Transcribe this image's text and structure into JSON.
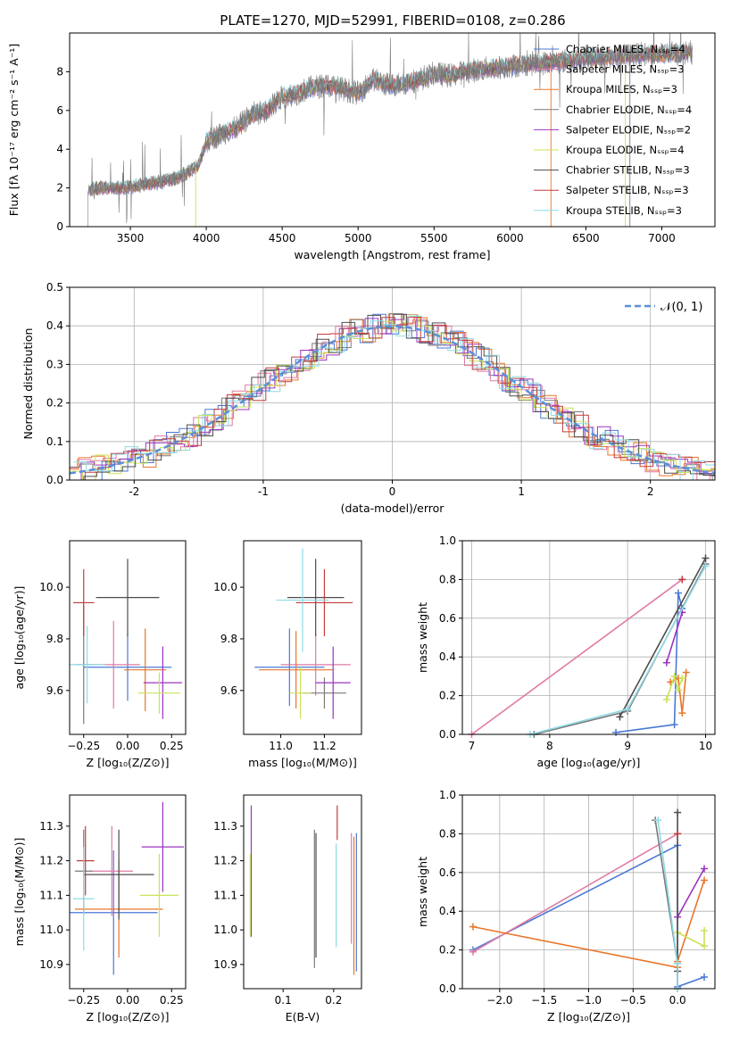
{
  "page": {
    "title": "PLATE=1270, MJD=52991, FIBERID=0108, z=0.286"
  },
  "colors": {
    "black": "#000000",
    "grid": "#b0b0b0",
    "gaussian": "#5b8fd9"
  },
  "models": [
    {
      "id": "chabrier_miles",
      "label": "Chabrier MILES, Nₛₛₚ=4",
      "color": "#4a78d4"
    },
    {
      "id": "salpeter_miles",
      "label": "Salpeter MILES, Nₛₛₚ=3",
      "color": "#e07aa6"
    },
    {
      "id": "kroupa_miles",
      "label": "Kroupa MILES, Nₛₛₚ=3",
      "color": "#e8762a"
    },
    {
      "id": "chabrier_elodie",
      "label": "Chabrier ELODIE, Nₛₛₚ=4",
      "color": "#7a7a7a"
    },
    {
      "id": "salpeter_elodie",
      "label": "Salpeter ELODIE, Nₛₛₚ=2",
      "color": "#9b34c0"
    },
    {
      "id": "kroupa_elodie",
      "label": "Kroupa ELODIE, Nₛₛₚ=4",
      "color": "#c9e35a"
    },
    {
      "id": "chabrier_stelib",
      "label": "Chabrier STELIB, Nₛₛₚ=3",
      "color": "#4d4d4d"
    },
    {
      "id": "salpeter_stelib",
      "label": "Salpeter STELIB, Nₛₛₚ=3",
      "color": "#c43b3b"
    },
    {
      "id": "kroupa_stelib",
      "label": "Kroupa STELIB, Nₛₛₚ=3",
      "color": "#8edbe5"
    }
  ],
  "chart_data": [
    {
      "id": "spectrum",
      "type": "line",
      "xlabel": "wavelength [Angstrom, rest frame]",
      "ylabel": "Flux [fλ 10⁻¹⁷ erg cm⁻² s⁻¹ A⁻¹]",
      "xlim": [
        3100,
        7350
      ],
      "ylim": [
        0,
        10
      ],
      "xticks": [
        3500,
        4000,
        4500,
        5000,
        5500,
        6000,
        6500,
        7000
      ],
      "yticks": [
        0,
        2,
        4,
        6,
        8
      ],
      "grid": false,
      "legend": "upper right",
      "continuum": {
        "x": [
          3220,
          3300,
          3400,
          3500,
          3600,
          3700,
          3800,
          3900,
          3950,
          4000,
          4100,
          4200,
          4300,
          4400,
          4500,
          4600,
          4700,
          4800,
          4900,
          5000,
          5100,
          5200,
          5300,
          5400,
          5500,
          5600,
          5700,
          5800,
          5900,
          6000,
          6100,
          6200,
          6300,
          6400,
          6500,
          6600,
          6700,
          6800,
          6900,
          7000,
          7100,
          7200
        ],
        "y": [
          1.9,
          2.0,
          2.0,
          2.05,
          2.2,
          2.3,
          2.5,
          2.9,
          3.2,
          4.4,
          4.8,
          5.1,
          5.8,
          6.0,
          6.7,
          6.9,
          7.2,
          7.3,
          7.1,
          6.9,
          7.6,
          7.3,
          7.4,
          7.6,
          7.9,
          7.8,
          8.0,
          8.1,
          8.2,
          8.3,
          8.4,
          8.45,
          8.5,
          8.6,
          8.7,
          8.75,
          8.8,
          8.85,
          8.9,
          8.9,
          8.95,
          9.0
        ]
      }
    },
    {
      "id": "residuals",
      "type": "bar",
      "xlabel": "(data-model)/error",
      "ylabel": "Normed distribution",
      "xlim": [
        -2.5,
        2.5
      ],
      "ylim": [
        0,
        0.5
      ],
      "xticks": [
        -2,
        -1,
        0,
        1,
        2
      ],
      "yticks": [
        0.0,
        0.1,
        0.2,
        0.3,
        0.4,
        0.5
      ],
      "grid": true,
      "legend": "upper right",
      "gaussian_label": "𝒩(0, 1)",
      "bin_width": 0.1
    },
    {
      "id": "age_vs_Z",
      "type": "scatter",
      "xlabel": "Z [log₁₀(Z/Z⊙)]",
      "ylabel": "age  [log₁₀(age/yr)]",
      "xlim": [
        -0.33,
        0.33
      ],
      "ylim": [
        9.43,
        10.18
      ],
      "xticks": [
        -0.25,
        0.0,
        0.25
      ],
      "xtick_labels": [
        "−0.25",
        "0.00",
        "0.25"
      ],
      "yticks": [
        9.6,
        9.8,
        10.0
      ],
      "grid": false,
      "points": [
        {
          "model": 0,
          "x": 0.0,
          "y": 9.69,
          "xerr": 0.25,
          "yerr": 0.13
        },
        {
          "model": 1,
          "x": -0.08,
          "y": 9.7,
          "xerr": 0.15,
          "yerr": 0.17
        },
        {
          "model": 2,
          "x": 0.1,
          "y": 9.68,
          "xerr": 0.12,
          "yerr": 0.16
        },
        {
          "model": 3,
          "x": -0.25,
          "y": 9.7,
          "xerr": 0.05,
          "yerr": 0.23
        },
        {
          "model": 4,
          "x": 0.2,
          "y": 9.63,
          "xerr": 0.11,
          "yerr": 0.14
        },
        {
          "model": 5,
          "x": 0.18,
          "y": 9.59,
          "xerr": 0.12,
          "yerr": 0.08
        },
        {
          "model": 6,
          "x": 0.0,
          "y": 9.96,
          "xerr": 0.18,
          "yerr": 0.15
        },
        {
          "model": 7,
          "x": -0.25,
          "y": 9.94,
          "xerr": 0.06,
          "yerr": 0.13
        },
        {
          "model": 8,
          "x": -0.23,
          "y": 9.7,
          "xerr": 0.1,
          "yerr": 0.15
        }
      ]
    },
    {
      "id": "age_vs_mass",
      "type": "scatter",
      "xlabel": "mass [log₁₀(M/M⊙)]",
      "ylabel": "",
      "xlim": [
        10.83,
        11.37
      ],
      "ylim": [
        9.43,
        10.18
      ],
      "xticks": [
        11.0,
        11.2
      ],
      "xtick_labels": [
        "11.0",
        "11.2"
      ],
      "yticks": [
        9.6,
        9.8,
        10.0
      ],
      "grid": false,
      "points": [
        {
          "model": 0,
          "x": 11.04,
          "y": 9.69,
          "xerr": 0.16,
          "yerr": 0.15
        },
        {
          "model": 1,
          "x": 11.16,
          "y": 9.7,
          "xerr": 0.16,
          "yerr": 0.12
        },
        {
          "model": 2,
          "x": 11.07,
          "y": 9.68,
          "xerr": 0.17,
          "yerr": 0.15
        },
        {
          "model": 3,
          "x": 11.2,
          "y": 9.59,
          "xerr": 0.1,
          "yerr": 0.06
        },
        {
          "model": 4,
          "x": 11.24,
          "y": 9.63,
          "xerr": 0.08,
          "yerr": 0.14
        },
        {
          "model": 5,
          "x": 11.09,
          "y": 9.59,
          "xerr": 0.05,
          "yerr": 0.1
        },
        {
          "model": 6,
          "x": 11.16,
          "y": 9.96,
          "xerr": 0.13,
          "yerr": 0.15
        },
        {
          "model": 7,
          "x": 11.2,
          "y": 9.94,
          "xerr": 0.13,
          "yerr": 0.13
        },
        {
          "model": 8,
          "x": 11.1,
          "y": 9.95,
          "xerr": 0.12,
          "yerr": 0.2
        }
      ]
    },
    {
      "id": "weight_vs_age",
      "type": "line",
      "xlabel": "age  [log₁₀(age/yr)]",
      "ylabel": "mass weight",
      "xlim": [
        6.88,
        10.12
      ],
      "ylim": [
        0,
        1
      ],
      "xticks": [
        7,
        8,
        9,
        10
      ],
      "xtick_labels": [
        "7",
        "8",
        "9",
        "10"
      ],
      "yticks": [
        0.0,
        0.2,
        0.4,
        0.6,
        0.8,
        1.0
      ],
      "grid": true,
      "series": [
        {
          "model": 0,
          "x": [
            8.85,
            9.6,
            9.65,
            9.7
          ],
          "y": [
            0.01,
            0.05,
            0.73,
            0.65
          ]
        },
        {
          "model": 1,
          "x": [
            7.0,
            9.7
          ],
          "y": [
            0.0,
            0.8
          ]
        },
        {
          "model": 2,
          "x": [
            9.55,
            9.65,
            9.7,
            9.75
          ],
          "y": [
            0.27,
            0.29,
            0.11,
            0.32
          ]
        },
        {
          "model": 3,
          "x": [
            7.8,
            9.0,
            10.0
          ],
          "y": [
            0.0,
            0.12,
            0.88
          ]
        },
        {
          "model": 4,
          "x": [
            9.5,
            9.7
          ],
          "y": [
            0.37,
            0.63
          ]
        },
        {
          "model": 5,
          "x": [
            9.5,
            9.6,
            9.65,
            9.7
          ],
          "y": [
            0.18,
            0.3,
            0.23,
            0.29
          ]
        },
        {
          "model": 6,
          "x": [
            8.9,
            10.0
          ],
          "y": [
            0.09,
            0.91
          ]
        },
        {
          "model": 7,
          "x": [
            9.7
          ],
          "y": [
            0.8
          ]
        },
        {
          "model": 8,
          "x": [
            7.75,
            9.0,
            10.0
          ],
          "y": [
            0.0,
            0.13,
            0.87
          ]
        }
      ]
    },
    {
      "id": "mass_vs_Z",
      "type": "scatter",
      "xlabel": "Z [log₁₀(Z/Z⊙)]",
      "ylabel": "mass [log₁₀(M/M⊙)]",
      "xlim": [
        -0.33,
        0.33
      ],
      "ylim": [
        10.83,
        11.39
      ],
      "xticks": [
        -0.25,
        0.0,
        0.25
      ],
      "xtick_labels": [
        "−0.25",
        "0.00",
        "0.25"
      ],
      "yticks": [
        10.9,
        11.0,
        11.1,
        11.2,
        11.3
      ],
      "grid": false,
      "points": [
        {
          "model": 0,
          "x": -0.08,
          "y": 11.05,
          "xerr": 0.25,
          "yerr": 0.18
        },
        {
          "model": 1,
          "x": -0.09,
          "y": 11.17,
          "xerr": 0.12,
          "yerr": 0.13
        },
        {
          "model": 2,
          "x": -0.05,
          "y": 11.06,
          "xerr": 0.25,
          "yerr": 0.14
        },
        {
          "model": 3,
          "x": -0.25,
          "y": 11.17,
          "xerr": 0.05,
          "yerr": 0.12
        },
        {
          "model": 4,
          "x": 0.2,
          "y": 11.24,
          "xerr": 0.12,
          "yerr": 0.13
        },
        {
          "model": 5,
          "x": 0.18,
          "y": 11.1,
          "xerr": 0.11,
          "yerr": 0.12
        },
        {
          "model": 6,
          "x": -0.05,
          "y": 11.16,
          "xerr": 0.2,
          "yerr": 0.13
        },
        {
          "model": 7,
          "x": -0.24,
          "y": 11.2,
          "xerr": 0.05,
          "yerr": 0.1
        },
        {
          "model": 8,
          "x": -0.25,
          "y": 11.09,
          "xerr": 0.06,
          "yerr": 0.15
        }
      ]
    },
    {
      "id": "mass_vs_ebv",
      "type": "scatter",
      "xlabel": "E(B-V)",
      "ylabel": "",
      "xlim": [
        0.022,
        0.255
      ],
      "ylim": [
        10.83,
        11.39
      ],
      "xticks": [
        0.1,
        0.2
      ],
      "xtick_labels": [
        "0.1",
        "0.2"
      ],
      "yticks": [
        10.9,
        11.0,
        11.1,
        11.2,
        11.3
      ],
      "grid": false,
      "points": [
        {
          "model": 0,
          "x": 0.245,
          "y": 11.08,
          "xerr": 0,
          "yerr": 0.2
        },
        {
          "model": 1,
          "x": 0.235,
          "y": 11.12,
          "xerr": 0,
          "yerr": 0.16
        },
        {
          "model": 2,
          "x": 0.24,
          "y": 11.07,
          "xerr": 0,
          "yerr": 0.2
        },
        {
          "model": 3,
          "x": 0.162,
          "y": 11.09,
          "xerr": 0,
          "yerr": 0.2
        },
        {
          "model": 4,
          "x": 0.037,
          "y": 11.17,
          "xerr": 0,
          "yerr": 0.19
        },
        {
          "model": 5,
          "x": 0.035,
          "y": 11.1,
          "xerr": 0,
          "yerr": 0.12
        },
        {
          "model": 6,
          "x": 0.165,
          "y": 11.1,
          "xerr": 0,
          "yerr": 0.18
        },
        {
          "model": 7,
          "x": 0.207,
          "y": 11.31,
          "xerr": 0,
          "yerr": 0.05
        },
        {
          "model": 8,
          "x": 0.205,
          "y": 11.1,
          "xerr": 0,
          "yerr": 0.15
        }
      ]
    },
    {
      "id": "weight_vs_Z",
      "type": "line",
      "xlabel": "Z [log₁₀(Z/Z⊙)]",
      "ylabel": "mass weight",
      "xlim": [
        -2.42,
        0.42
      ],
      "ylim": [
        0,
        1
      ],
      "xticks": [
        -2.0,
        -1.5,
        -1.0,
        -0.5,
        0.0
      ],
      "xtick_labels": [
        "−2.0",
        "−1.5",
        "−1.0",
        "−0.5",
        "0.0"
      ],
      "yticks": [
        0.0,
        0.2,
        0.4,
        0.6,
        0.8,
        1.0
      ],
      "grid": true,
      "series": [
        {
          "model": 0,
          "x": [
            -2.3,
            0.0,
            0.0,
            0.3
          ],
          "y": [
            0.2,
            0.74,
            0.01,
            0.06
          ]
        },
        {
          "model": 1,
          "x": [
            -2.3,
            0.0
          ],
          "y": [
            0.19,
            0.8
          ]
        },
        {
          "model": 2,
          "x": [
            -2.3,
            0.0,
            0.0,
            0.3
          ],
          "y": [
            0.32,
            0.11,
            0.14,
            0.56
          ]
        },
        {
          "model": 3,
          "x": [
            -0.25,
            0.0,
            0.0
          ],
          "y": [
            0.87,
            0.13,
            0.0
          ]
        },
        {
          "model": 4,
          "x": [
            0.0,
            0.3
          ],
          "y": [
            0.37,
            0.62
          ]
        },
        {
          "model": 5,
          "x": [
            0.0,
            0.3,
            0.3
          ],
          "y": [
            0.29,
            0.22,
            0.3
          ]
        },
        {
          "model": 6,
          "x": [
            0.0,
            0.0
          ],
          "y": [
            0.91,
            0.09
          ]
        },
        {
          "model": 7,
          "x": [
            0.0
          ],
          "y": [
            0.8
          ]
        },
        {
          "model": 8,
          "x": [
            -0.22,
            0.0,
            0.0
          ],
          "y": [
            0.87,
            0.13,
            0.0
          ]
        }
      ]
    }
  ]
}
